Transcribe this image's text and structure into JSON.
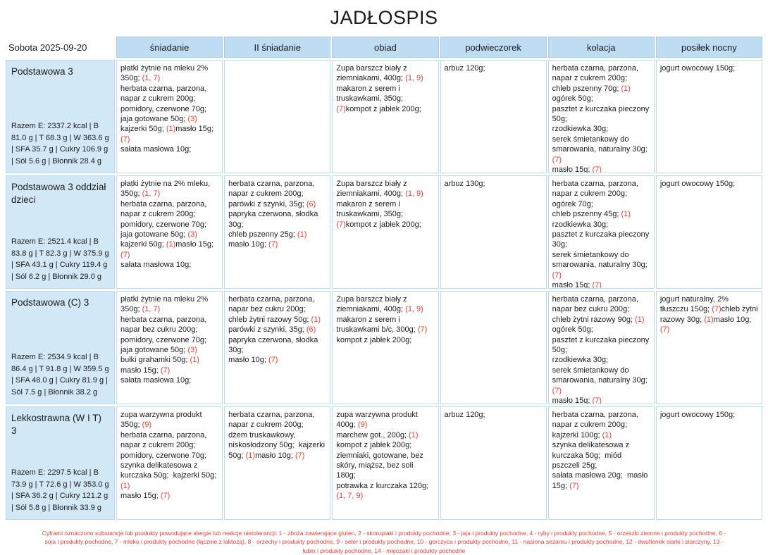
{
  "title": "JADŁOSPIS",
  "date_label": "Sobota 2025-09-20",
  "columns": [
    "śniadanie",
    "II śniadanie",
    "obiad",
    "podwieczorek",
    "kolacja",
    "posiłek nocny"
  ],
  "colors": {
    "header_bg": "#bedcf2",
    "header_border": "#a9cce6",
    "label_bg": "#d3e8f7",
    "cell_border": "#bcdaee",
    "allergen_red": "#e8403a"
  },
  "footer_legend": "Cyframi oznaczono substancje lub produkty powodujące alergie lub reakcje nietolerancji: 1 - zboża zawierające gluten, 2 - skorupiaki i produkty pochodne, 3 - jaja i produkty pochodne, 4 - ryby i produkty pochodne, 5 - orzeszki ziemne i produkty pochodne, 6 - soja i produkty pochodne, 7 - mleko i produkty pochodne (łącznie z laktozą), 8 - orzechy i produkty pochodne, 9 - seler i produkty pochodne, 10 - gorczyca i produkty pochodne, 11 - nasiona sezamu i produkty pochodne, 12 - dwutlenek siarki i siarczyny, 13 - łubin i produkty pochodne, 14 - mięczaki i produkty pochodne",
  "rows": [
    {
      "name": "Podstawowa 3",
      "totals": "Razem E: 2337.2 kcal | B 81.0 g | T 68.3 g | W 363.6 g | SFA 35.7 g | Cukry 106.9 g | Sól 5.6 g | Błonnik 28.4 g",
      "meals": [
        {
          "lines": [
            [
              {
                "text": "płatki żytnie na mleku 2% 350g; "
              },
              {
                "text": "(1, 7)",
                "allergen": true
              }
            ],
            [
              {
                "text": "herbata czarna, parzona, napar z cukrem 200g;"
              }
            ],
            [
              {
                "text": "pomidory, czerwone 70g;"
              }
            ],
            [
              {
                "text": "jaja gotowane 50g; "
              },
              {
                "text": "(3)",
                "allergen": true
              }
            ],
            [
              {
                "text": "kajzerki 50g; "
              },
              {
                "text": "(1)",
                "allergen": true
              },
              {
                "text": "masło 15g; "
              },
              {
                "text": "(7)",
                "allergen": true
              }
            ],
            [
              {
                "text": "sałata masłowa 10g;"
              }
            ]
          ]
        },
        {
          "lines": []
        },
        {
          "lines": [
            [
              {
                "text": "Zupa barszcz biały z ziemniakami, 400g; "
              },
              {
                "text": "(1, 9)",
                "allergen": true
              }
            ],
            [
              {
                "text": "makaron z serem i truskawkami, 350g; "
              },
              {
                "text": "(7)",
                "allergen": true
              },
              {
                "text": "kompot z jabłek 200g;"
              }
            ]
          ]
        },
        {
          "lines": [
            [
              {
                "text": "arbuz 120g;"
              }
            ]
          ]
        },
        {
          "lines": [
            [
              {
                "text": "herbata czarna, parzona, napar z cukrem 200g;"
              }
            ],
            [
              {
                "text": "chleb pszenny 70g; "
              },
              {
                "text": "(1)",
                "allergen": true
              }
            ],
            [
              {
                "text": "ogórek 50g;"
              }
            ],
            [
              {
                "text": "pasztet z kurczaka pieczony 50g;"
              }
            ],
            [
              {
                "text": "rzodkiewka 30g;"
              }
            ],
            [
              {
                "text": "serek śmietankowy do smarowania, naturalny 30g; "
              },
              {
                "text": "(7)",
                "allergen": true
              }
            ],
            [
              {
                "text": "masło 15g; "
              },
              {
                "text": "(7)",
                "allergen": true
              }
            ]
          ]
        },
        {
          "lines": [
            [
              {
                "text": "jogurt owocowy 150g;"
              }
            ]
          ]
        }
      ]
    },
    {
      "name": "Podstawowa 3 oddział dzieci",
      "totals": "Razem E: 2521.4 kcal | B 83.8 g | T 82.3 g | W 375.9 g | SFA 43.1 g | Cukry 119.4 g | Sól 6.2 g | Błonnik 29.0 g",
      "meals": [
        {
          "lines": [
            [
              {
                "text": "płatki żytnie na 2% mleku, 350g; "
              },
              {
                "text": "(1, 7)",
                "allergen": true
              }
            ],
            [
              {
                "text": "herbata czarna, parzona, napar z cukrem 200g;"
              }
            ],
            [
              {
                "text": "pomidory, czerwone 70g;"
              }
            ],
            [
              {
                "text": "jaja gotowane 50g; "
              },
              {
                "text": "(3)",
                "allergen": true
              }
            ],
            [
              {
                "text": "kajzerki 50g; "
              },
              {
                "text": "(1)",
                "allergen": true
              },
              {
                "text": "masło 15g; "
              },
              {
                "text": "(7)",
                "allergen": true
              }
            ],
            [
              {
                "text": "sałata masłowa 10g;"
              }
            ]
          ]
        },
        {
          "lines": [
            [
              {
                "text": "herbata czarna, parzona, napar z cukrem 200g;"
              }
            ],
            [
              {
                "text": "parówki z szynki, 35g; "
              },
              {
                "text": "(6)",
                "allergen": true
              }
            ],
            [
              {
                "text": "papryka czerwona, słodka 30g;"
              }
            ],
            [
              {
                "text": "chleb pszenny 25g; "
              },
              {
                "text": "(1)",
                "allergen": true
              }
            ],
            [
              {
                "text": "masło 10g; "
              },
              {
                "text": "(7)",
                "allergen": true
              }
            ]
          ]
        },
        {
          "lines": [
            [
              {
                "text": "Zupa barszcz biały z ziemniakami, 400g; "
              },
              {
                "text": "(1, 9)",
                "allergen": true
              }
            ],
            [
              {
                "text": "makaron z serem i truskawkami, 350g; "
              },
              {
                "text": "(7)",
                "allergen": true
              },
              {
                "text": "kompot z jabłek 200g;"
              }
            ]
          ]
        },
        {
          "lines": [
            [
              {
                "text": "arbuz 130g;"
              }
            ]
          ]
        },
        {
          "lines": [
            [
              {
                "text": "herbata czarna, parzona, napar z cukrem 200g;  ogórek 70g;"
              }
            ],
            [
              {
                "text": "chleb pszenny 45g; "
              },
              {
                "text": "(1)",
                "allergen": true
              }
            ],
            [
              {
                "text": "rzodkiewka 30g;"
              }
            ],
            [
              {
                "text": "pasztet z kurczaka pieczony 30g;"
              }
            ],
            [
              {
                "text": "serek śmietankowy do smarowania, naturalny 30g; "
              },
              {
                "text": "(7)",
                "allergen": true
              }
            ],
            [
              {
                "text": "masło 15g; "
              },
              {
                "text": "(7)",
                "allergen": true
              }
            ]
          ]
        },
        {
          "lines": [
            [
              {
                "text": "jogurt owocowy 150g;"
              }
            ]
          ]
        }
      ]
    },
    {
      "name": "Podstawowa (C) 3",
      "totals": "Razem E: 2534.9 kcal | B 86.4 g | T 91.8 g | W 359.5 g | SFA 48.0 g | Cukry 81.9 g | Sól 7.5 g | Błonnik 38.2 g",
      "meals": [
        {
          "lines": [
            [
              {
                "text": "płatki żytnie na mleku 2% 350g; "
              },
              {
                "text": "(1, 7)",
                "allergen": true
              }
            ],
            [
              {
                "text": "herbata czarna, parzona, napar bez cukru 200g;"
              }
            ],
            [
              {
                "text": "pomidory, czerwone 70g;"
              }
            ],
            [
              {
                "text": "jaja gotowane 50g; "
              },
              {
                "text": "(3)",
                "allergen": true
              }
            ],
            [
              {
                "text": "bułki grahamki 50g; "
              },
              {
                "text": "(1)",
                "allergen": true
              }
            ],
            [
              {
                "text": "masło 15g; "
              },
              {
                "text": "(7)",
                "allergen": true
              }
            ],
            [
              {
                "text": "sałata masłowa 10g;"
              }
            ]
          ]
        },
        {
          "lines": [
            [
              {
                "text": "herbata czarna, parzona, napar bez cukru 200g;"
              }
            ],
            [
              {
                "text": "chleb żytni razowy 50g; "
              },
              {
                "text": "(1)",
                "allergen": true
              }
            ],
            [
              {
                "text": "parówki z szynki, 35g; "
              },
              {
                "text": "(6)",
                "allergen": true
              }
            ],
            [
              {
                "text": "papryka czerwona, słodka 30g;"
              }
            ],
            [
              {
                "text": "masło 10g; "
              },
              {
                "text": "(7)",
                "allergen": true
              }
            ]
          ]
        },
        {
          "lines": [
            [
              {
                "text": "Zupa barszcz biały z ziemniakami, 400g; "
              },
              {
                "text": "(1, 9)",
                "allergen": true
              }
            ],
            [
              {
                "text": "makaron z serem i truskawkami b/c, 300g; "
              },
              {
                "text": "(7)",
                "allergen": true
              }
            ],
            [
              {
                "text": "kompot z jabłek 200g;"
              }
            ]
          ]
        },
        {
          "lines": []
        },
        {
          "lines": [
            [
              {
                "text": "herbata czarna, parzona, napar bez cukru 200g;"
              }
            ],
            [
              {
                "text": "chleb żytni razowy 90g; "
              },
              {
                "text": "(1)",
                "allergen": true
              }
            ],
            [
              {
                "text": "ogórek 50g;"
              }
            ],
            [
              {
                "text": "pasztet z kurczaka pieczony 50g;"
              }
            ],
            [
              {
                "text": "rzodkiewka 30g;"
              }
            ],
            [
              {
                "text": "serek śmietankowy do smarowania, naturalny 30g; "
              },
              {
                "text": "(7)",
                "allergen": true
              }
            ],
            [
              {
                "text": "masło 15g; "
              },
              {
                "text": "(7)",
                "allergen": true
              }
            ]
          ]
        },
        {
          "lines": [
            [
              {
                "text": "jogurt naturalny, 2% tłuszczu 150g; "
              },
              {
                "text": "(7)",
                "allergen": true
              },
              {
                "text": "chleb żytni razowy 30g; "
              },
              {
                "text": "(1)",
                "allergen": true
              },
              {
                "text": "masło 10g; "
              },
              {
                "text": "(7)",
                "allergen": true
              }
            ]
          ]
        }
      ]
    },
    {
      "name": "Lekkostrawna (W I T) 3",
      "totals": "Razem E: 2297.5 kcal | B 73.9 g | T 72.6 g | W 353.0 g | SFA 36.2 g | Cukry 121.2 g | Sól 5.8 g | Błonnik 33.9 g",
      "meals": [
        {
          "lines": [
            [
              {
                "text": "zupa warzywna produkt 350g; "
              },
              {
                "text": "(9)",
                "allergen": true
              }
            ],
            [
              {
                "text": "herbata czarna, parzona, napar z cukrem 200g;"
              }
            ],
            [
              {
                "text": "pomidory, czerwone 70g;"
              }
            ],
            [
              {
                "text": "szynka delikatesowa z kurczaka 50g;  kajzerki 50g; "
              },
              {
                "text": "(1)",
                "allergen": true
              }
            ],
            [
              {
                "text": "masło 15g; "
              },
              {
                "text": "(7)",
                "allergen": true
              }
            ]
          ]
        },
        {
          "lines": [
            [
              {
                "text": "herbata czarna, parzona, napar z cukrem 200g;"
              }
            ],
            [
              {
                "text": "dżem truskawkowy, niskosłodzony 50g;  kajzerki 50g; "
              },
              {
                "text": "(1)",
                "allergen": true
              },
              {
                "text": "masło 10g; "
              },
              {
                "text": "(7)",
                "allergen": true
              }
            ]
          ]
        },
        {
          "lines": [
            [
              {
                "text": "zupa warzywna produkt 400g; "
              },
              {
                "text": "(9)",
                "allergen": true
              }
            ],
            [
              {
                "text": "marchew got., 200g; "
              },
              {
                "text": "(1)",
                "allergen": true
              }
            ],
            [
              {
                "text": "kompot z jabłek 200g;"
              }
            ],
            [
              {
                "text": "ziemniaki, gotowane, bez skóry, miąższ, bez soli  180g;"
              }
            ],
            [
              {
                "text": "potrawka z kurczaka 120g; "
              },
              {
                "text": "(1, 7, 9)",
                "allergen": true
              }
            ]
          ]
        },
        {
          "lines": [
            [
              {
                "text": "arbuz 120g;"
              }
            ]
          ]
        },
        {
          "lines": [
            [
              {
                "text": "herbata czarna, parzona, napar z cukrem 200g;  kajzerki 100g; "
              },
              {
                "text": "(1)",
                "allergen": true
              }
            ],
            [
              {
                "text": "szynka delikatesowa z kurczaka 50g;  miód pszczeli 25g;"
              }
            ],
            [
              {
                "text": "sałata masłowa 20g;  masło 15g; "
              },
              {
                "text": "(7)",
                "allergen": true
              }
            ]
          ]
        },
        {
          "lines": [
            [
              {
                "text": "jogurt owocowy 150g;"
              }
            ]
          ]
        }
      ]
    }
  ]
}
